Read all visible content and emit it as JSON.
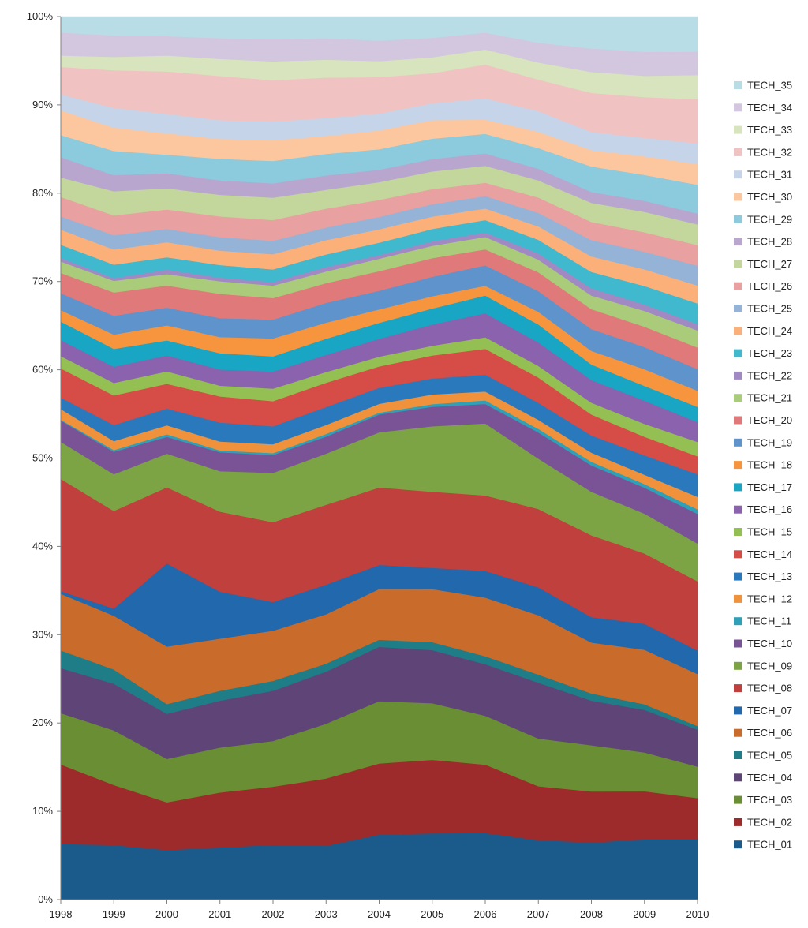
{
  "chart_data": {
    "type": "area",
    "stacked": "percent",
    "title": "",
    "xlabel": "",
    "ylabel": "",
    "ylim": [
      0,
      100
    ],
    "y_ticks": [
      "0%",
      "10%",
      "20%",
      "30%",
      "40%",
      "50%",
      "60%",
      "70%",
      "80%",
      "90%",
      "100%"
    ],
    "x": [
      "1998",
      "1999",
      "2000",
      "2001",
      "2002",
      "2003",
      "2004",
      "2005",
      "2006",
      "2007",
      "2008",
      "2009",
      "2010"
    ],
    "legend_position": "right",
    "grid": false,
    "series": [
      {
        "name": "TECH_01",
        "color": "#1a5b8c",
        "values": [
          6.3,
          6.1,
          5.6,
          5.8,
          6.1,
          6.0,
          7.3,
          7.5,
          7.5,
          6.6,
          6.3,
          6.5,
          6.7
        ]
      },
      {
        "name": "TECH_02",
        "color": "#9e2b2b",
        "values": [
          9.0,
          6.7,
          5.4,
          6.1,
          6.5,
          7.5,
          8.0,
          8.3,
          7.7,
          6.0,
          5.6,
          5.2,
          4.6
        ]
      },
      {
        "name": "TECH_03",
        "color": "#6a8e33",
        "values": [
          5.8,
          6.1,
          4.9,
          5.0,
          5.1,
          6.1,
          7.0,
          6.4,
          5.5,
          5.3,
          5.1,
          4.2,
          3.5
        ]
      },
      {
        "name": "TECH_04",
        "color": "#5f4478",
        "values": [
          5.1,
          5.2,
          5.1,
          5.2,
          5.6,
          5.8,
          6.1,
          6.0,
          5.8,
          6.2,
          4.9,
          4.6,
          4.1
        ]
      },
      {
        "name": "TECH_05",
        "color": "#1f7d87",
        "values": [
          2.0,
          1.6,
          1.1,
          1.1,
          1.1,
          0.9,
          0.8,
          0.9,
          0.9,
          0.9,
          0.8,
          0.6,
          0.4
        ]
      },
      {
        "name": "TECH_06",
        "color": "#c96b2a",
        "values": [
          6.4,
          6.0,
          6.5,
          5.8,
          5.6,
          5.5,
          5.7,
          6.0,
          6.6,
          6.6,
          5.6,
          5.9,
          5.8
        ]
      },
      {
        "name": "TECH_07",
        "color": "#2168ac",
        "values": [
          0.3,
          0.8,
          9.4,
          5.2,
          3.2,
          3.3,
          2.7,
          2.4,
          3.0,
          3.1,
          2.8,
          2.8,
          2.6
        ]
      },
      {
        "name": "TECH_08",
        "color": "#c0403e",
        "values": [
          12.7,
          10.9,
          8.6,
          8.9,
          8.9,
          8.9,
          8.7,
          8.6,
          8.5,
          8.7,
          9.0,
          7.6,
          7.7
        ]
      },
      {
        "name": "TECH_09",
        "color": "#7da444",
        "values": [
          4.2,
          4.1,
          3.8,
          4.5,
          5.5,
          5.7,
          6.2,
          7.4,
          8.1,
          5.6,
          4.8,
          4.3,
          4.2
        ]
      },
      {
        "name": "TECH_10",
        "color": "#7a5397",
        "values": [
          2.4,
          2.5,
          1.9,
          2.1,
          2.0,
          1.9,
          2.0,
          2.2,
          2.2,
          2.9,
          2.9,
          2.8,
          3.3
        ]
      },
      {
        "name": "TECH_11",
        "color": "#2ea0b8",
        "values": [
          0.1,
          0.2,
          0.3,
          0.2,
          0.2,
          0.3,
          0.2,
          0.3,
          0.4,
          0.4,
          0.4,
          0.4,
          0.5
        ]
      },
      {
        "name": "TECH_12",
        "color": "#f0923b",
        "values": [
          1.2,
          1.0,
          1.0,
          1.0,
          1.0,
          1.0,
          1.0,
          1.1,
          1.0,
          1.0,
          1.0,
          1.0,
          1.4
        ]
      },
      {
        "name": "TECH_13",
        "color": "#2b79bd",
        "values": [
          1.3,
          1.8,
          1.9,
          2.1,
          2.0,
          2.0,
          1.8,
          1.8,
          1.9,
          1.9,
          1.9,
          2.1,
          2.5
        ]
      },
      {
        "name": "TECH_14",
        "color": "#d64c47",
        "values": [
          3.3,
          3.3,
          2.8,
          2.9,
          2.8,
          2.7,
          2.4,
          2.6,
          2.9,
          2.8,
          2.3,
          2.0,
          2.0
        ]
      },
      {
        "name": "TECH_15",
        "color": "#94bf52",
        "values": [
          1.4,
          1.4,
          1.4,
          1.2,
          1.4,
          1.2,
          1.1,
          1.1,
          1.3,
          1.3,
          1.3,
          1.4,
          1.6
        ]
      },
      {
        "name": "TECH_16",
        "color": "#8a62ad",
        "values": [
          1.8,
          1.8,
          1.8,
          1.8,
          1.9,
          1.9,
          2.0,
          2.4,
          2.7,
          2.6,
          2.5,
          2.5,
          2.2
        ]
      },
      {
        "name": "TECH_17",
        "color": "#18a6c4",
        "values": [
          2.1,
          2.0,
          1.7,
          1.8,
          1.7,
          1.8,
          1.8,
          1.8,
          2.0,
          2.0,
          1.7,
          1.6,
          1.7
        ]
      },
      {
        "name": "TECH_18",
        "color": "#f7953e",
        "values": [
          1.3,
          1.6,
          1.7,
          1.8,
          2.0,
          1.8,
          1.5,
          1.4,
          1.1,
          1.4,
          1.5,
          1.8,
          1.8
        ]
      },
      {
        "name": "TECH_19",
        "color": "#5e93cc",
        "values": [
          1.9,
          2.1,
          2.0,
          2.1,
          2.1,
          2.2,
          2.1,
          2.2,
          2.3,
          2.3,
          2.4,
          2.4,
          2.4
        ]
      },
      {
        "name": "TECH_20",
        "color": "#e07a7a",
        "values": [
          2.3,
          2.6,
          2.5,
          2.7,
          2.4,
          2.2,
          2.2,
          2.1,
          1.8,
          2.1,
          2.2,
          2.2,
          2.4
        ]
      },
      {
        "name": "TECH_21",
        "color": "#a9cb7a",
        "values": [
          1.3,
          1.3,
          1.3,
          1.4,
          1.4,
          1.3,
          1.4,
          1.4,
          1.4,
          1.4,
          1.5,
          1.7,
          1.9
        ]
      },
      {
        "name": "TECH_22",
        "color": "#a189c4",
        "values": [
          0.4,
          0.3,
          0.5,
          0.4,
          0.4,
          0.5,
          0.4,
          0.5,
          0.5,
          0.7,
          0.8,
          0.7,
          0.7
        ]
      },
      {
        "name": "TECH_23",
        "color": "#40b9cf",
        "values": [
          1.5,
          1.5,
          1.4,
          1.4,
          1.4,
          1.4,
          1.4,
          1.4,
          1.4,
          1.5,
          1.8,
          2.0,
          2.3
        ]
      },
      {
        "name": "TECH_24",
        "color": "#fbb07a",
        "values": [
          1.7,
          1.7,
          1.7,
          1.6,
          1.7,
          1.6,
          1.5,
          1.4,
          1.3,
          1.5,
          1.7,
          1.8,
          2.0
        ]
      },
      {
        "name": "TECH_25",
        "color": "#95b3d7",
        "values": [
          1.5,
          1.6,
          1.5,
          1.5,
          1.5,
          1.4,
          1.4,
          1.4,
          1.4,
          1.5,
          1.8,
          1.9,
          2.2
        ]
      },
      {
        "name": "TECH_26",
        "color": "#e9a0a0",
        "values": [
          2.2,
          2.2,
          2.2,
          2.3,
          2.3,
          2.1,
          1.9,
          1.7,
          1.5,
          1.7,
          2.0,
          2.1,
          2.3
        ]
      },
      {
        "name": "TECH_27",
        "color": "#c3d69b",
        "values": [
          2.2,
          2.7,
          2.4,
          2.4,
          2.5,
          2.1,
          2.0,
          2.0,
          1.9,
          1.9,
          2.1,
          2.2,
          2.3
        ]
      },
      {
        "name": "TECH_28",
        "color": "#b8a6cf",
        "values": [
          2.3,
          1.8,
          1.7,
          1.6,
          1.6,
          1.6,
          1.4,
          1.4,
          1.4,
          1.3,
          1.2,
          1.2,
          1.2
        ]
      },
      {
        "name": "TECH_29",
        "color": "#8ccadd",
        "values": [
          2.5,
          2.7,
          2.1,
          2.4,
          2.5,
          2.4,
          2.3,
          2.3,
          2.2,
          2.3,
          2.8,
          2.8,
          3.2
        ]
      },
      {
        "name": "TECH_30",
        "color": "#fcc79e",
        "values": [
          2.8,
          2.6,
          2.4,
          2.2,
          2.3,
          2.0,
          2.1,
          2.1,
          1.6,
          1.8,
          1.8,
          2.0,
          2.3
        ]
      },
      {
        "name": "TECH_31",
        "color": "#c6d4e9",
        "values": [
          1.8,
          2.2,
          2.2,
          2.1,
          2.1,
          2.0,
          1.9,
          1.9,
          2.4,
          2.3,
          2.0,
          2.0,
          2.3
        ]
      },
      {
        "name": "TECH_32",
        "color": "#f0c2c2",
        "values": [
          3.1,
          4.2,
          4.8,
          4.9,
          4.6,
          4.5,
          4.1,
          3.4,
          3.8,
          3.5,
          4.3,
          4.4,
          4.9
        ]
      },
      {
        "name": "TECH_33",
        "color": "#d7e4bd",
        "values": [
          1.3,
          1.5,
          1.8,
          1.9,
          2.1,
          2.0,
          1.8,
          1.8,
          1.7,
          1.9,
          2.3,
          2.3,
          2.7
        ]
      },
      {
        "name": "TECH_34",
        "color": "#d2c7de",
        "values": [
          2.6,
          2.4,
          2.2,
          2.3,
          2.5,
          2.4,
          2.3,
          2.2,
          1.9,
          2.2,
          2.6,
          2.6,
          2.6
        ]
      },
      {
        "name": "TECH_35",
        "color": "#b9dde7",
        "values": [
          1.8,
          2.1,
          2.2,
          2.4,
          2.5,
          2.4,
          2.7,
          2.4,
          1.8,
          2.9,
          3.5,
          3.8,
          3.9
        ]
      }
    ]
  }
}
